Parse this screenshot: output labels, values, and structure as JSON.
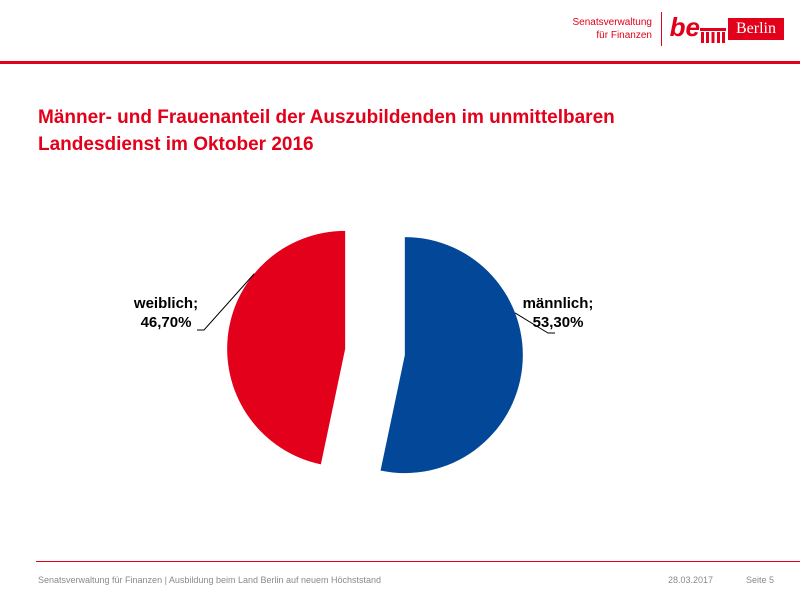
{
  "header": {
    "org_line1": "Senatsverwaltung",
    "org_line2": "für Finanzen",
    "logo_be": "be",
    "logo_berlin": "Berlin",
    "brand_color": "#e2001a"
  },
  "title": {
    "line1": "Männer- und Frauenanteil der Auszubildenden im unmittelbaren",
    "line2": "Landesdienst im Oktober 2016"
  },
  "chart_data": {
    "type": "pie",
    "title": "Männer- und Frauenanteil der Auszubildenden im unmittelbaren Landesdienst im Oktober 2016",
    "slices": [
      {
        "label": "männlich",
        "value": 53.3,
        "display": "53,30%",
        "color": "#034898"
      },
      {
        "label": "weiblich",
        "value": 46.7,
        "display": "46,70%",
        "color": "#e2001a"
      }
    ],
    "exploded": true,
    "data_labels": "outside with leader lines"
  },
  "footer": {
    "source": "Senatsverwaltung für Finanzen | Ausbildung beim Land Berlin auf neuem Höchststand",
    "date": "28.03.2017",
    "page": "Seite 5"
  }
}
